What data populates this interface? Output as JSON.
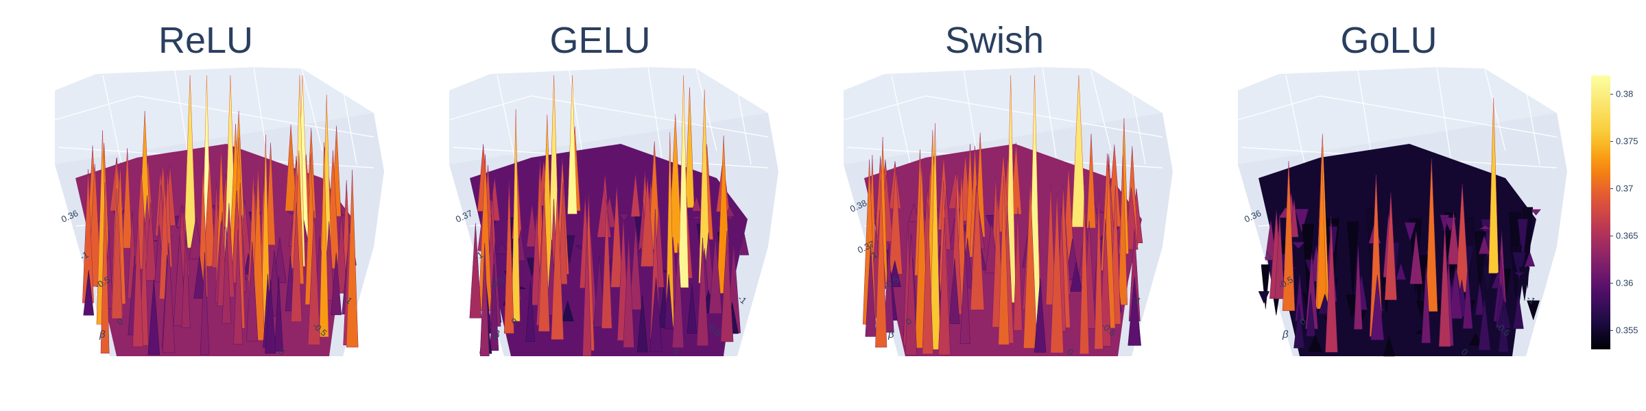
{
  "chart_data": [
    {
      "type": "surface",
      "title": "ReLU",
      "z_ticks": [
        "0.36"
      ],
      "beta_ticks": [
        "-1",
        "-0.5",
        "0"
      ],
      "alpha_ticks": [
        "-1",
        "-0.5",
        "0"
      ],
      "beta_label": "β",
      "z_range": [
        0.352,
        0.382
      ],
      "mean_level": 0.366,
      "spike_seed": 11
    },
    {
      "type": "surface",
      "title": "GELU",
      "z_ticks": [
        "0.37"
      ],
      "beta_ticks": [
        "-1",
        "-0.5",
        "0"
      ],
      "alpha_ticks": [
        "-1",
        "-0.5",
        "0"
      ],
      "beta_label": "β",
      "z_range": [
        0.352,
        0.382
      ],
      "mean_level": 0.363,
      "spike_seed": 23
    },
    {
      "type": "surface",
      "title": "Swish",
      "z_ticks": [
        "0.38",
        "0.37"
      ],
      "beta_ticks": [
        "-1",
        "-0.5",
        "0"
      ],
      "alpha_ticks": [
        "-1",
        "-0.5",
        "0"
      ],
      "beta_label": "β",
      "z_range": [
        0.352,
        0.382
      ],
      "mean_level": 0.366,
      "spike_seed": 37
    },
    {
      "type": "surface",
      "title": "GoLU",
      "z_ticks": [
        "0.36"
      ],
      "beta_ticks": [
        "-1",
        "-0.5",
        "0"
      ],
      "alpha_ticks": [
        "-1",
        "-0.5",
        "0"
      ],
      "beta_label": "β",
      "z_range": [
        0.352,
        0.382
      ],
      "mean_level": 0.358,
      "spike_seed": 53
    }
  ],
  "colorbar": {
    "colorscale": "inferno",
    "range": [
      0.353,
      0.382
    ],
    "ticks": [
      0.38,
      0.375,
      0.37,
      0.365,
      0.36,
      0.355
    ],
    "tick_labels": [
      "0.38",
      "0.375",
      "0.37",
      "0.365",
      "0.36",
      "0.355"
    ]
  },
  "colors": {
    "scene_bg": "#e5ecf6",
    "grid": "#ffffff",
    "text": "#2a3f5f"
  }
}
